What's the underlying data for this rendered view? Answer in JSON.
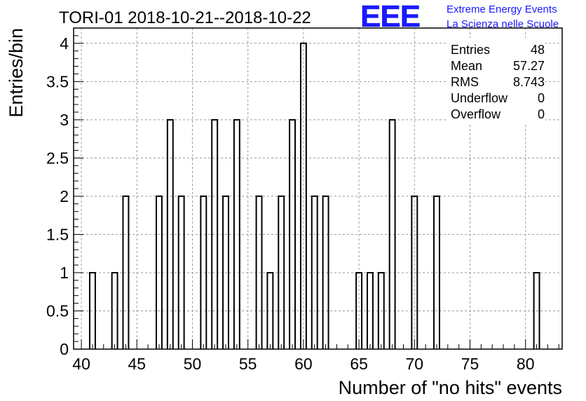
{
  "chart_data": {
    "type": "bar",
    "title": "TORI-01 2018-10-21--2018-10-22",
    "xlabel": "Number of \"no hits\" events",
    "ylabel": "Entries/bin",
    "xlim": [
      39.3,
      83.3
    ],
    "ylim": [
      0,
      4.2
    ],
    "bin_width": 0.5,
    "grid": true,
    "x_ticks": [
      "40",
      "45",
      "50",
      "55",
      "60",
      "65",
      "70",
      "75",
      "80"
    ],
    "x_tick_values": [
      40,
      45,
      50,
      55,
      60,
      65,
      70,
      75,
      80
    ],
    "y_ticks": [
      "0",
      "0.5",
      "1",
      "1.5",
      "2",
      "2.5",
      "3",
      "3.5",
      "4"
    ],
    "y_tick_values": [
      0,
      0.5,
      1,
      1.5,
      2,
      2.5,
      3,
      3.5,
      4
    ],
    "bins": [
      {
        "x": 41,
        "y": 1
      },
      {
        "x": 43,
        "y": 1
      },
      {
        "x": 44,
        "y": 2
      },
      {
        "x": 47,
        "y": 2
      },
      {
        "x": 48,
        "y": 3
      },
      {
        "x": 49,
        "y": 2
      },
      {
        "x": 51,
        "y": 2
      },
      {
        "x": 52,
        "y": 3
      },
      {
        "x": 53,
        "y": 2
      },
      {
        "x": 54,
        "y": 3
      },
      {
        "x": 56,
        "y": 2
      },
      {
        "x": 57,
        "y": 1
      },
      {
        "x": 58,
        "y": 2
      },
      {
        "x": 59,
        "y": 3
      },
      {
        "x": 60,
        "y": 4
      },
      {
        "x": 61,
        "y": 2
      },
      {
        "x": 62,
        "y": 2
      },
      {
        "x": 65,
        "y": 1
      },
      {
        "x": 66,
        "y": 1
      },
      {
        "x": 67,
        "y": 1
      },
      {
        "x": 68,
        "y": 3
      },
      {
        "x": 70,
        "y": 2
      },
      {
        "x": 72,
        "y": 2
      },
      {
        "x": 81,
        "y": 1
      }
    ],
    "stats": [
      {
        "label": "Entries",
        "value": "48"
      },
      {
        "label": "Mean",
        "value": "57.27"
      },
      {
        "label": "RMS",
        "value": "8.743"
      },
      {
        "label": "Underflow",
        "value": "0"
      },
      {
        "label": "Overflow",
        "value": "0"
      }
    ]
  },
  "logo": {
    "mark": "EEE",
    "line1": "Extreme Energy Events",
    "line2": "La Scienza nelle Scuole",
    "color": "#1a1aff"
  }
}
